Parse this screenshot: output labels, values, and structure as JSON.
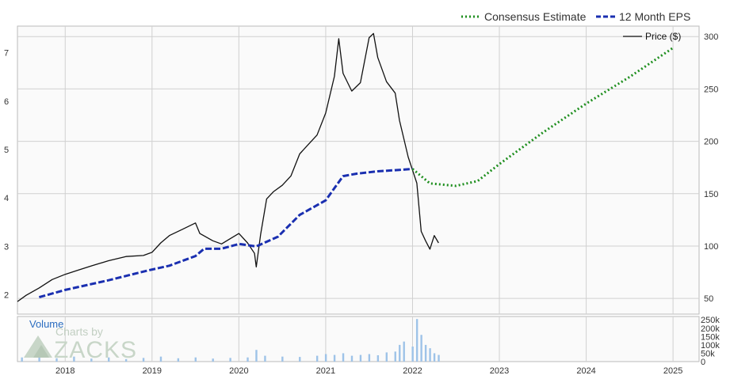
{
  "chart_data": {
    "type": "line",
    "legend": {
      "consensus_label": "Consensus Estimate",
      "eps_label": "12 Month EPS",
      "price_label": "Price ($)",
      "placement": "top-right"
    },
    "colors": {
      "consensus": "#1f8f1f",
      "eps": "#1a2fb0",
      "price": "#111111",
      "volume": "#9ec3e8",
      "grid": "#d0d0d0",
      "plot_bg": "#fafafa"
    },
    "x_axis": {
      "range": [
        2017.45,
        2025.3
      ],
      "ticks": [
        "2018",
        "2019",
        "2020",
        "2021",
        "2022",
        "2023",
        "2024",
        "2025"
      ]
    },
    "eps_axis": {
      "side": "left",
      "range": [
        1.6,
        7.55
      ],
      "ticks": [
        "2",
        "3",
        "4",
        "5",
        "6",
        "7"
      ]
    },
    "price_axis": {
      "side": "right",
      "range": [
        35,
        310
      ],
      "ticks": [
        "50",
        "100",
        "150",
        "200",
        "250",
        "300"
      ]
    },
    "volume_axis": {
      "side": "right",
      "range": [
        0,
        270000
      ],
      "ticks": [
        "0",
        "50k",
        "100k",
        "150k",
        "200k",
        "250k"
      ],
      "label": "Volume"
    },
    "watermark": {
      "line1": "Charts by",
      "line2": "ZACKS"
    },
    "series": [
      {
        "name": "12 Month EPS",
        "axis": "eps",
        "style": "dashed",
        "x": [
          2017.7,
          2018.0,
          2018.5,
          2018.95,
          2019.2,
          2019.5,
          2019.6,
          2019.8,
          2020.0,
          2020.2,
          2020.45,
          2020.7,
          2021.0,
          2021.2,
          2021.35,
          2021.6,
          2021.85,
          2022.0
        ],
        "y": [
          1.95,
          2.1,
          2.3,
          2.5,
          2.6,
          2.8,
          2.95,
          2.95,
          3.05,
          3.0,
          3.2,
          3.65,
          3.95,
          4.45,
          4.5,
          4.55,
          4.58,
          4.6
        ]
      },
      {
        "name": "Consensus Estimate",
        "axis": "eps",
        "style": "dotted",
        "x": [
          2022.0,
          2022.2,
          2022.5,
          2022.75,
          2023.0,
          2023.5,
          2024.0,
          2024.5,
          2025.0
        ],
        "y": [
          4.6,
          4.3,
          4.25,
          4.35,
          4.7,
          5.35,
          5.95,
          6.5,
          7.1
        ]
      },
      {
        "name": "Price ($)",
        "axis": "price",
        "style": "solid",
        "x": [
          2017.45,
          2017.55,
          2017.7,
          2017.85,
          2018.0,
          2018.15,
          2018.3,
          2018.5,
          2018.7,
          2018.9,
          2019.0,
          2019.1,
          2019.2,
          2019.35,
          2019.5,
          2019.55,
          2019.7,
          2019.8,
          2019.9,
          2020.0,
          2020.1,
          2020.18,
          2020.2,
          2020.25,
          2020.32,
          2020.4,
          2020.5,
          2020.6,
          2020.7,
          2020.8,
          2020.9,
          2021.0,
          2021.1,
          2021.15,
          2021.2,
          2021.3,
          2021.4,
          2021.5,
          2021.55,
          2021.6,
          2021.7,
          2021.8,
          2021.85,
          2021.95,
          2022.05,
          2022.1,
          2022.15,
          2022.2,
          2022.25,
          2022.3
        ],
        "y": [
          47,
          53,
          60,
          68,
          73,
          77,
          81,
          86,
          90,
          91,
          94,
          103,
          110,
          116,
          122,
          112,
          105,
          102,
          107,
          112,
          103,
          93,
          80,
          111,
          145,
          152,
          158,
          167,
          188,
          197,
          206,
          227,
          262,
          298,
          265,
          248,
          256,
          299,
          303,
          280,
          257,
          246,
          220,
          185,
          160,
          114,
          105,
          97,
          110,
          103
        ]
      }
    ],
    "volume": {
      "x": [
        2017.5,
        2017.7,
        2017.9,
        2018.1,
        2018.3,
        2018.5,
        2018.7,
        2018.9,
        2019.1,
        2019.3,
        2019.5,
        2019.7,
        2019.9,
        2020.1,
        2020.2,
        2020.3,
        2020.5,
        2020.7,
        2020.9,
        2021.0,
        2021.1,
        2021.2,
        2021.3,
        2021.4,
        2021.5,
        2021.6,
        2021.7,
        2021.8,
        2021.85,
        2021.9,
        2022.0,
        2022.05,
        2022.1,
        2022.15,
        2022.2,
        2022.25,
        2022.3
      ],
      "values": [
        25000,
        40000,
        20000,
        30000,
        18000,
        25000,
        15000,
        22000,
        30000,
        20000,
        25000,
        18000,
        22000,
        25000,
        70000,
        35000,
        30000,
        28000,
        35000,
        45000,
        40000,
        50000,
        35000,
        40000,
        45000,
        38000,
        55000,
        60000,
        100000,
        120000,
        90000,
        255000,
        160000,
        100000,
        80000,
        50000,
        40000
      ]
    }
  }
}
